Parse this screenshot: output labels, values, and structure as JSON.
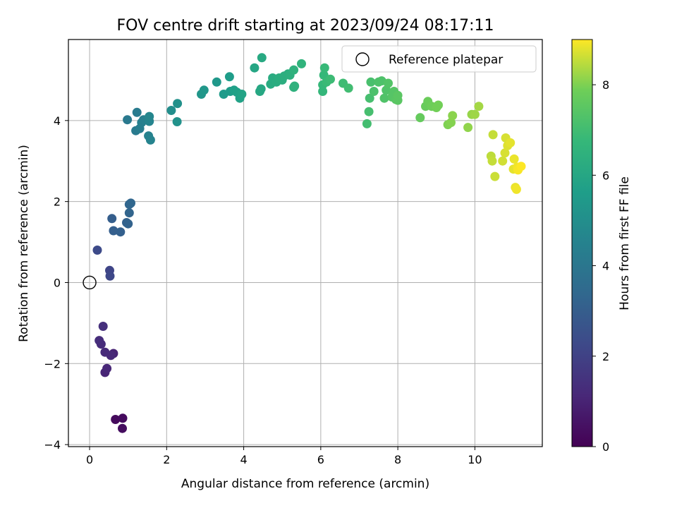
{
  "chart_data": {
    "type": "scatter",
    "title": "FOV centre drift starting at 2023/09/24 08:17:11",
    "xlabel": "Angular distance from reference (arcmin)",
    "ylabel": "Rotation from reference (arcmin)",
    "xlim": [
      -0.55,
      11.75
    ],
    "ylim": [
      -4.05,
      6.0
    ],
    "xticks": [
      0,
      2,
      4,
      6,
      8,
      10
    ],
    "yticks": [
      -4,
      -2,
      0,
      2,
      4
    ],
    "grid": true,
    "legend_position": "top-right",
    "legend": [
      "Reference platepar"
    ],
    "reference_point": {
      "x": 0,
      "y": 0,
      "label": "Reference platepar"
    },
    "colorbar": {
      "label": "Hours from first FF file",
      "colormap": "viridis",
      "range": [
        0,
        9
      ],
      "ticks": [
        0,
        2,
        4,
        6,
        8
      ]
    },
    "points": [
      [
        0.67,
        -3.38,
        0.25
      ],
      [
        0.86,
        -3.35,
        0.3
      ],
      [
        0.85,
        -3.6,
        0.35
      ],
      [
        0.62,
        -1.75,
        1.0
      ],
      [
        0.4,
        -2.22,
        1.05
      ],
      [
        0.45,
        -2.12,
        1.1
      ],
      [
        0.55,
        -1.8,
        1.15
      ],
      [
        0.4,
        -1.72,
        1.2
      ],
      [
        0.3,
        -1.52,
        1.25
      ],
      [
        0.25,
        -1.43,
        1.3
      ],
      [
        0.35,
        -1.08,
        1.4
      ],
      [
        0.52,
        0.3,
        2.1
      ],
      [
        0.53,
        0.16,
        2.2
      ],
      [
        0.2,
        0.8,
        2.3
      ],
      [
        0.58,
        1.58,
        3.0
      ],
      [
        0.62,
        1.28,
        3.05
      ],
      [
        0.8,
        1.25,
        3.1
      ],
      [
        0.96,
        1.48,
        3.15
      ],
      [
        1.0,
        1.45,
        3.2
      ],
      [
        1.03,
        1.72,
        3.25
      ],
      [
        1.03,
        1.93,
        3.3
      ],
      [
        1.07,
        1.96,
        3.35
      ],
      [
        0.98,
        4.02,
        4.1
      ],
      [
        1.2,
        3.75,
        4.15
      ],
      [
        1.23,
        4.2,
        4.2
      ],
      [
        1.3,
        3.8,
        4.3
      ],
      [
        1.35,
        3.95,
        4.35
      ],
      [
        1.4,
        4.02,
        4.4
      ],
      [
        1.53,
        3.62,
        4.5
      ],
      [
        1.58,
        3.52,
        4.55
      ],
      [
        1.55,
        3.98,
        4.6
      ],
      [
        1.55,
        4.1,
        4.65
      ],
      [
        2.12,
        4.25,
        5.0
      ],
      [
        2.28,
        4.42,
        5.1
      ],
      [
        2.27,
        3.97,
        5.15
      ],
      [
        2.9,
        4.65,
        5.3
      ],
      [
        2.97,
        4.75,
        5.35
      ],
      [
        3.3,
        4.95,
        5.4
      ],
      [
        3.48,
        4.65,
        5.5
      ],
      [
        3.65,
        4.72,
        5.55
      ],
      [
        3.63,
        5.08,
        5.6
      ],
      [
        3.75,
        4.75,
        5.7
      ],
      [
        3.82,
        4.7,
        5.75
      ],
      [
        3.9,
        4.55,
        5.8
      ],
      [
        3.95,
        4.65,
        5.85
      ],
      [
        4.28,
        5.3,
        6.0
      ],
      [
        4.42,
        4.72,
        6.05
      ],
      [
        4.45,
        4.78,
        6.05
      ],
      [
        4.47,
        5.55,
        6.1
      ],
      [
        4.7,
        4.9,
        6.2
      ],
      [
        4.75,
        5.05,
        6.2
      ],
      [
        4.85,
        4.95,
        6.25
      ],
      [
        4.92,
        5.05,
        6.3
      ],
      [
        5.0,
        5.0,
        6.3
      ],
      [
        5.05,
        5.1,
        6.35
      ],
      [
        5.15,
        5.15,
        6.35
      ],
      [
        5.2,
        5.12,
        6.4
      ],
      [
        5.3,
        4.82,
        6.45
      ],
      [
        5.32,
        4.85,
        6.5
      ],
      [
        5.3,
        5.25,
        6.5
      ],
      [
        5.5,
        5.4,
        6.55
      ],
      [
        6.05,
        4.72,
        6.7
      ],
      [
        6.05,
        4.88,
        6.75
      ],
      [
        6.08,
        5.12,
        6.75
      ],
      [
        6.1,
        5.3,
        6.8
      ],
      [
        6.15,
        4.95,
        6.85
      ],
      [
        6.25,
        5.02,
        6.9
      ],
      [
        6.58,
        4.92,
        6.95
      ],
      [
        6.72,
        4.8,
        7.0
      ],
      [
        7.2,
        3.92,
        7.05
      ],
      [
        7.25,
        4.22,
        7.1
      ],
      [
        7.27,
        4.55,
        7.1
      ],
      [
        7.3,
        4.95,
        7.15
      ],
      [
        7.38,
        4.72,
        7.2
      ],
      [
        7.5,
        4.95,
        7.25
      ],
      [
        7.58,
        4.98,
        7.25
      ],
      [
        7.65,
        4.55,
        7.3
      ],
      [
        7.7,
        4.75,
        7.3
      ],
      [
        7.75,
        4.92,
        7.35
      ],
      [
        7.85,
        4.58,
        7.4
      ],
      [
        7.9,
        4.72,
        7.4
      ],
      [
        7.95,
        4.52,
        7.45
      ],
      [
        8.0,
        4.5,
        7.5
      ],
      [
        8.0,
        4.62,
        7.5
      ],
      [
        8.58,
        4.07,
        7.7
      ],
      [
        8.72,
        4.35,
        7.75
      ],
      [
        8.78,
        4.47,
        7.8
      ],
      [
        8.88,
        4.35,
        7.85
      ],
      [
        9.0,
        4.32,
        7.9
      ],
      [
        9.05,
        4.38,
        7.9
      ],
      [
        9.3,
        3.9,
        8.0
      ],
      [
        9.38,
        3.95,
        8.05
      ],
      [
        9.42,
        4.12,
        8.1
      ],
      [
        9.82,
        3.83,
        8.15
      ],
      [
        9.92,
        4.15,
        8.2
      ],
      [
        10.0,
        4.15,
        8.25
      ],
      [
        10.1,
        4.35,
        8.3
      ],
      [
        10.42,
        3.12,
        8.5
      ],
      [
        10.45,
        3.0,
        8.55
      ],
      [
        10.47,
        3.65,
        8.55
      ],
      [
        10.52,
        2.62,
        8.6
      ],
      [
        10.72,
        3.0,
        8.65
      ],
      [
        10.78,
        3.2,
        8.7
      ],
      [
        10.8,
        3.57,
        8.7
      ],
      [
        10.85,
        3.38,
        8.75
      ],
      [
        10.92,
        3.45,
        8.8
      ],
      [
        11.0,
        2.8,
        8.8
      ],
      [
        11.02,
        3.05,
        8.85
      ],
      [
        11.05,
        2.35,
        8.85
      ],
      [
        11.08,
        2.3,
        8.9
      ],
      [
        11.1,
        2.85,
        8.9
      ],
      [
        11.12,
        2.78,
        8.95
      ],
      [
        11.2,
        2.87,
        9.0
      ]
    ]
  }
}
